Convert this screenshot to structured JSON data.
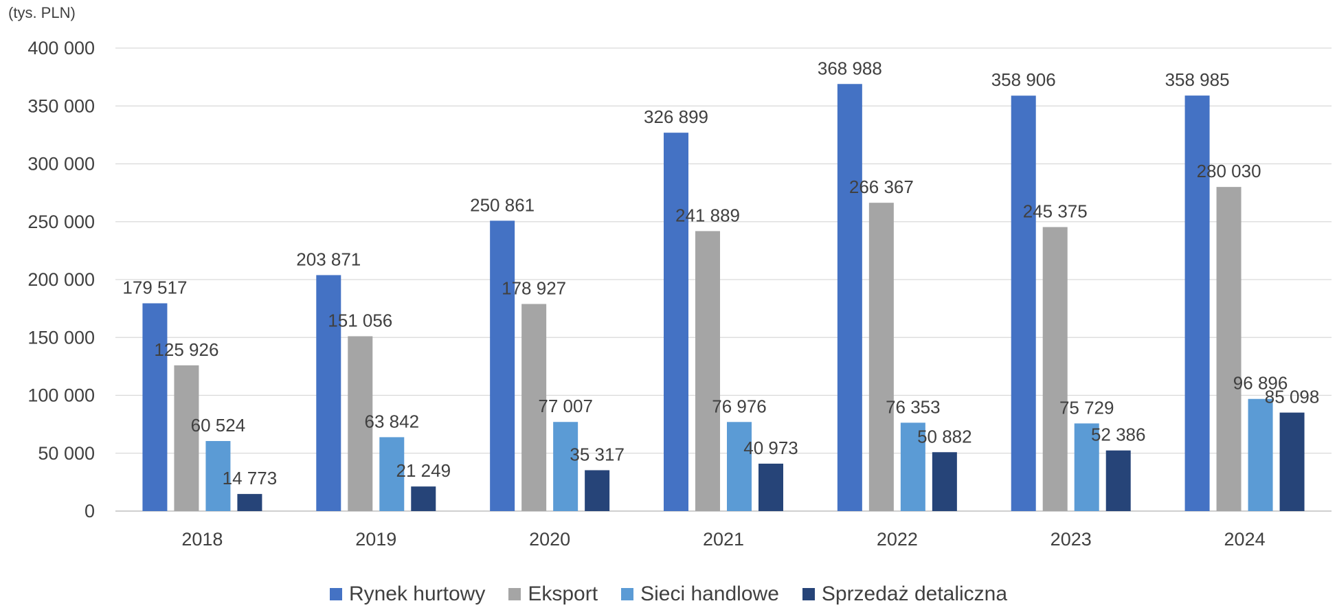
{
  "chart_data": {
    "type": "bar",
    "unit_label": "(tys. PLN)",
    "categories": [
      "2018",
      "2019",
      "2020",
      "2021",
      "2022",
      "2023",
      "2024"
    ],
    "series": [
      {
        "name": "Rynek hurtowy",
        "color": "#4472C4",
        "values": [
          179517,
          203871,
          250861,
          326899,
          368988,
          358906,
          358985
        ],
        "labels": [
          "179 517",
          "203 871",
          "250 861",
          "326 899",
          "368 988",
          "358 906",
          "358 985"
        ]
      },
      {
        "name": "Eksport",
        "color": "#A5A5A5",
        "values": [
          125926,
          151056,
          178927,
          241889,
          266367,
          245375,
          280030
        ],
        "labels": [
          "125 926",
          "151 056",
          "178 927",
          "241 889",
          "266 367",
          "245 375",
          "280 030"
        ]
      },
      {
        "name": "Sieci handlowe",
        "color": "#5B9BD5",
        "values": [
          60524,
          63842,
          77007,
          76976,
          76353,
          75729,
          96896
        ],
        "labels": [
          "60 524",
          "63 842",
          "77 007",
          "76 976",
          "76 353",
          "75 729",
          "96 896"
        ]
      },
      {
        "name": "Sprzedaż detaliczna",
        "color": "#264478",
        "values": [
          14773,
          21249,
          35317,
          40973,
          50882,
          52386,
          85098
        ],
        "labels": [
          "14 773",
          "21 249",
          "35 317",
          "40 973",
          "50 882",
          "52 386",
          "85 098"
        ]
      }
    ],
    "ylim": [
      0,
      400000
    ],
    "yticks": [
      0,
      50000,
      100000,
      150000,
      200000,
      250000,
      300000,
      350000,
      400000
    ],
    "ytick_labels": [
      "0",
      "50 000",
      "100 000",
      "150 000",
      "200 000",
      "250 000",
      "300 000",
      "350 000",
      "400 000"
    ],
    "grid": true,
    "legend_position": "bottom"
  }
}
